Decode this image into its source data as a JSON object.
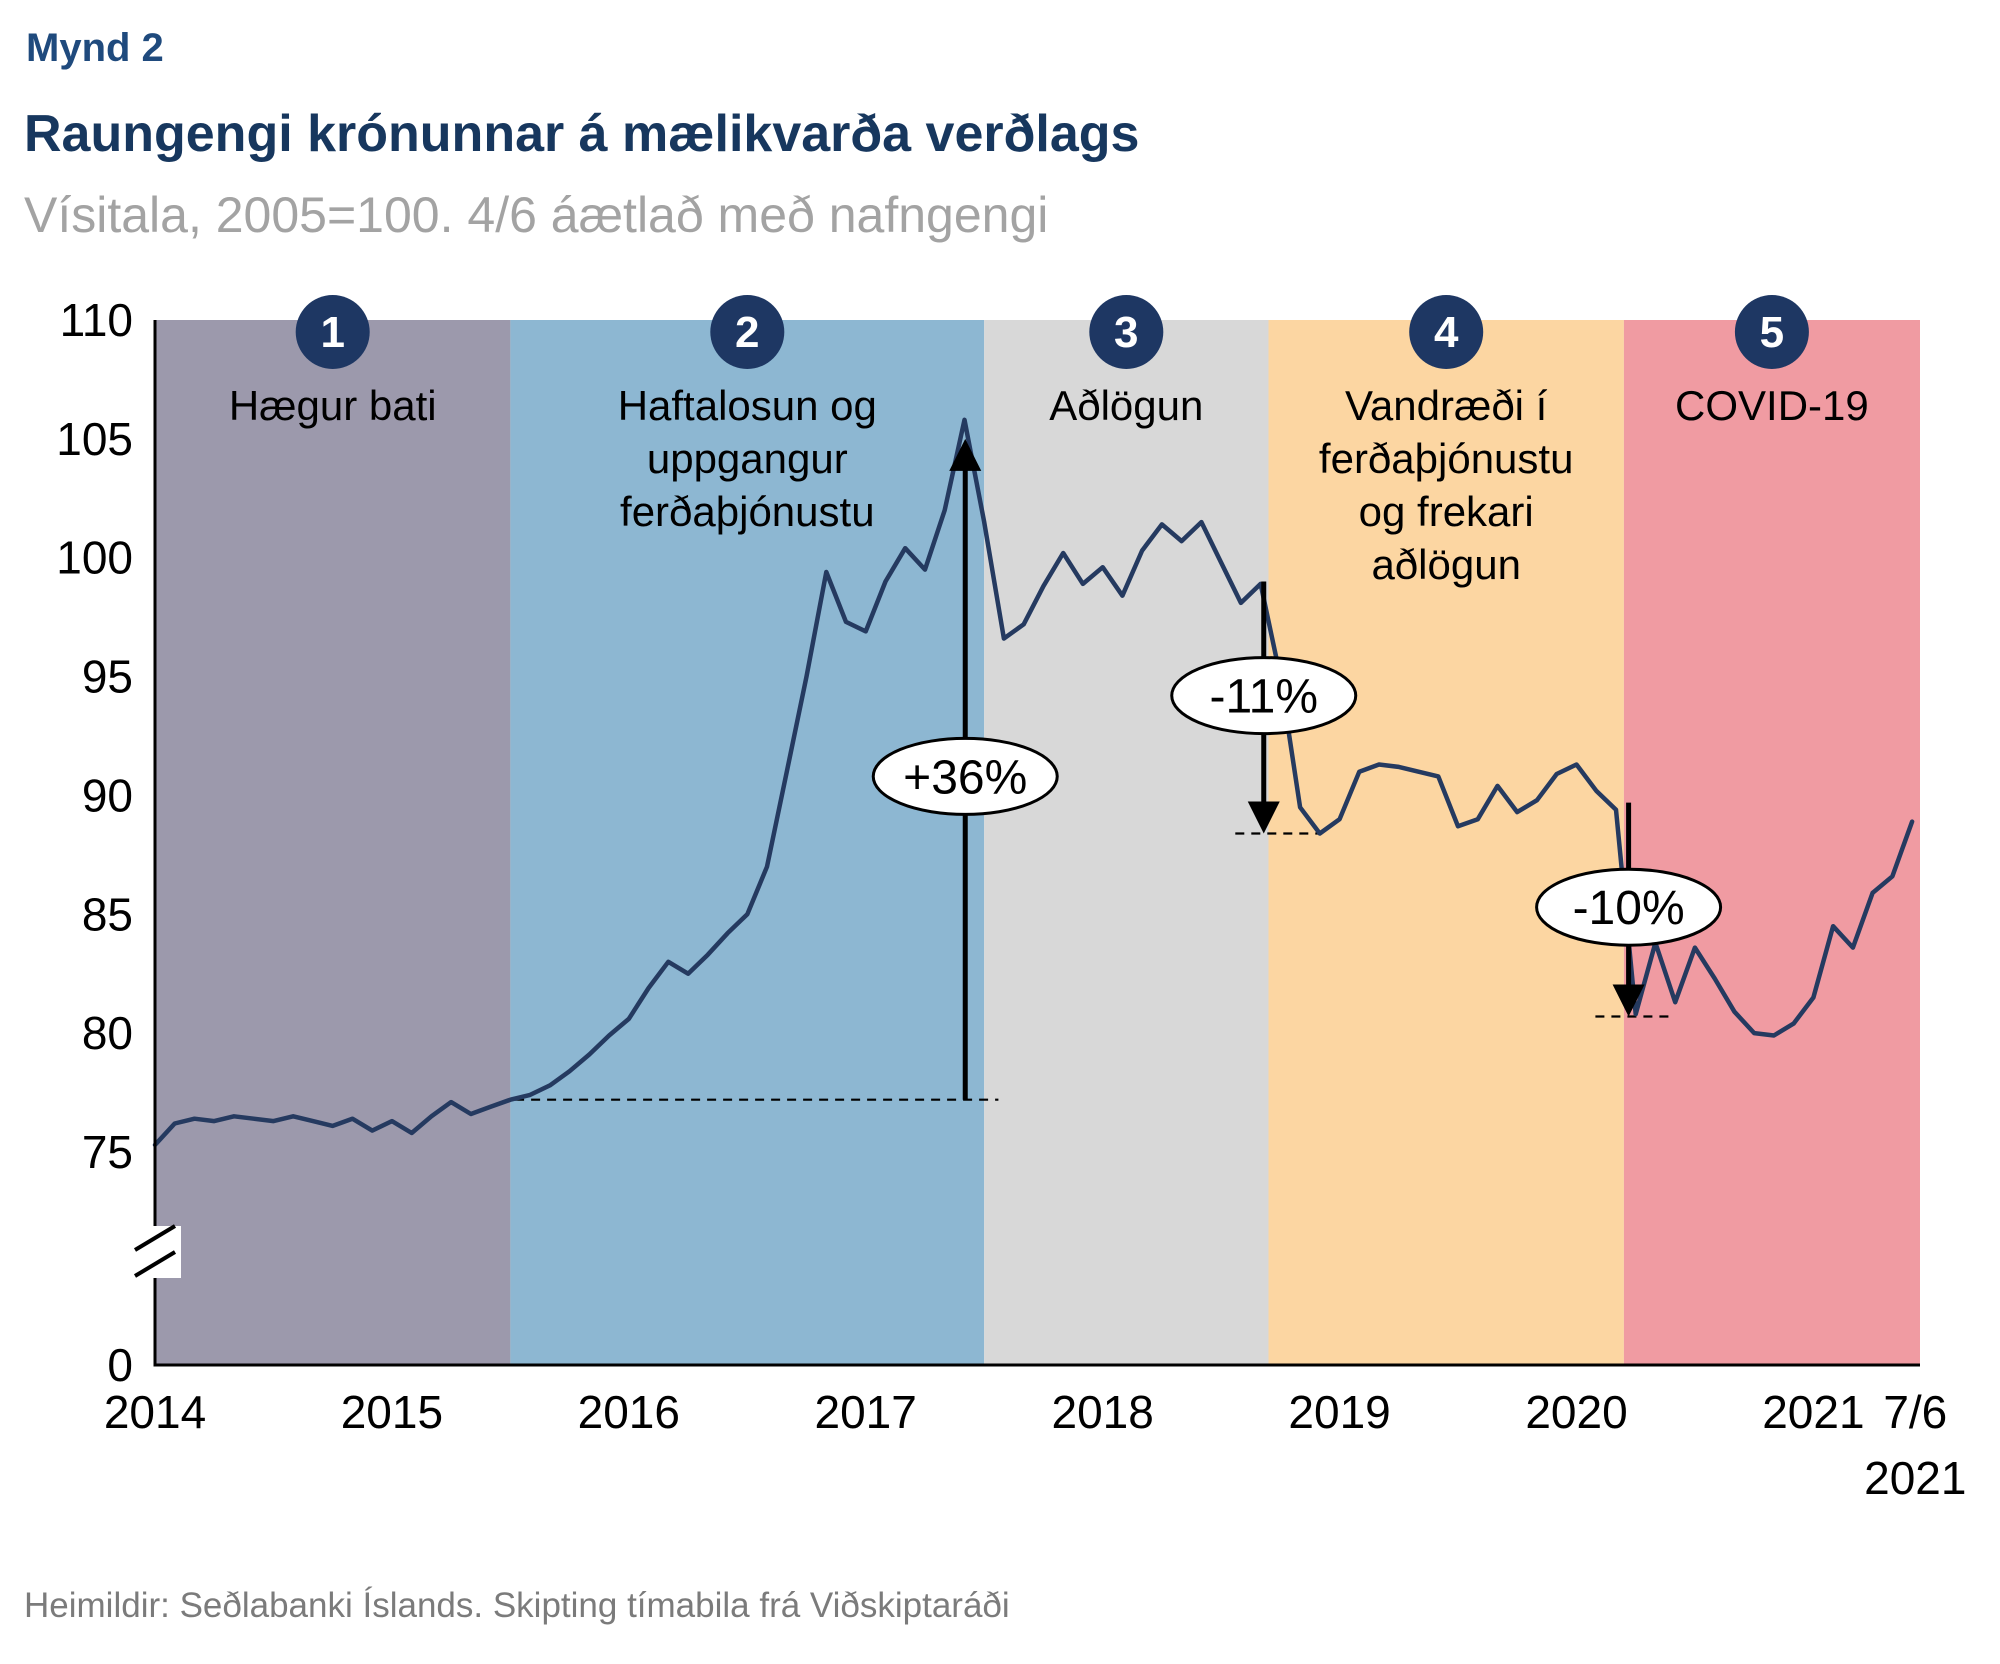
{
  "header": {
    "figure_label": "Mynd 2",
    "title": "Raungengi krónunnar á mælikvarða verðlags",
    "subtitle": "Vísitala, 2005=100. 4/6 áætlað með nafngengi"
  },
  "footer": {
    "source": "Heimildir: Seðlabanki Íslands. Skipting tímabila frá Viðskiptaráði"
  },
  "colors": {
    "title_navy": "#17375e",
    "figure_label_navy": "#1f4a7d",
    "subtitle_gray": "#a3a3a3",
    "source_gray": "#7b7b7b",
    "line_navy": "#253a60",
    "badge_navy": "#1e3763"
  },
  "chart_data": {
    "type": "line",
    "title": "Raungengi krónunnar á mælikvarða verðlags",
    "subtitle": "Vísitala, 2005=100. 4/6 áætlað með nafngengi",
    "legend_position": "none",
    "grid": false,
    "x_axis": {
      "start": 2014.0,
      "end": 2021.45,
      "ticks": [
        {
          "label": "2014",
          "pos": 2014
        },
        {
          "label": "2015",
          "pos": 2015
        },
        {
          "label": "2016",
          "pos": 2016
        },
        {
          "label": "2017",
          "pos": 2017
        },
        {
          "label": "2018",
          "pos": 2018
        },
        {
          "label": "2019",
          "pos": 2019
        },
        {
          "label": "2020",
          "pos": 2020
        },
        {
          "label": "2021",
          "pos": 2021
        },
        {
          "label": "7/6",
          "second_line": "2021",
          "pos": 2021.43
        }
      ]
    },
    "y_axis": {
      "max": 110,
      "min_working": 75,
      "ticks": [
        110,
        105,
        100,
        95,
        90,
        85,
        80,
        75
      ],
      "zero_label": "0",
      "axis_break": true
    },
    "series": [
      {
        "name": "Raungengi krónunnar (vísitala, 2005=100)",
        "color": "#253a60",
        "start_year": 2014,
        "interval": "monthly",
        "values": [
          75.3,
          76.2,
          76.4,
          76.3,
          76.5,
          76.4,
          76.3,
          76.5,
          76.3,
          76.1,
          76.4,
          75.9,
          76.3,
          75.8,
          76.5,
          77.1,
          76.6,
          76.9,
          77.2,
          77.4,
          77.8,
          78.4,
          79.1,
          79.9,
          80.6,
          81.9,
          83.0,
          82.5,
          83.3,
          84.2,
          85.0,
          87.0,
          91.0,
          95.0,
          99.4,
          97.3,
          96.9,
          99.0,
          100.4,
          99.5,
          102.0,
          105.8,
          101.5,
          96.6,
          97.2,
          98.8,
          100.2,
          98.9,
          99.6,
          98.4,
          100.3,
          101.4,
          100.7,
          101.5,
          99.8,
          98.1,
          98.9,
          95.0,
          89.5,
          88.4,
          89.0,
          91.0,
          91.3,
          91.2,
          91.0,
          90.8,
          88.7,
          89.0,
          90.4,
          89.3,
          89.8,
          90.9,
          91.3,
          90.2,
          89.4,
          80.8,
          83.8,
          81.3,
          83.6,
          82.3,
          80.9,
          80.0,
          79.9,
          80.4,
          81.5,
          84.5,
          83.6,
          85.9,
          86.6,
          88.9
        ]
      }
    ],
    "periods": [
      {
        "number": "1",
        "label_lines": [
          "Hægur bati"
        ],
        "start": 2014.0,
        "end": 2015.5,
        "color": "#9c99ac"
      },
      {
        "number": "2",
        "label_lines": [
          "Haftalosun og",
          "uppgangur",
          "ferðaþjónustu"
        ],
        "start": 2015.5,
        "end": 2017.5,
        "color": "#8db7d2"
      },
      {
        "number": "3",
        "label_lines": [
          "Aðlögun"
        ],
        "start": 2017.5,
        "end": 2018.7,
        "color": "#d8d8d8"
      },
      {
        "number": "4",
        "label_lines": [
          "Vandræði í",
          "ferðaþjónustu",
          "og frekari",
          "aðlögun"
        ],
        "start": 2018.7,
        "end": 2020.2,
        "color": "#fcd6a2"
      },
      {
        "number": "5",
        "label_lines": [
          "COVID-19"
        ],
        "start": 2020.2,
        "end": 2021.45,
        "color": "#f09ba2"
      }
    ],
    "annotations": [
      {
        "label": "+36%",
        "x": 2017.42,
        "from": 77.2,
        "to": 105.0,
        "direction": "up",
        "ellipse_at": 90.8,
        "dash_from_x": 2015.52,
        "dash_to_x": 2017.56,
        "dash_at": 77.2
      },
      {
        "label": "-11%",
        "x": 2018.68,
        "from": 99.0,
        "to": 88.4,
        "direction": "down",
        "ellipse_at": 94.2,
        "dash_from_x": 2018.56,
        "dash_to_x": 2018.92,
        "dash_at": 88.4
      },
      {
        "label": "-10%",
        "x": 2020.22,
        "from": 89.7,
        "to": 80.7,
        "direction": "down",
        "ellipse_at": 85.3,
        "dash_from_x": 2020.08,
        "dash_to_x": 2020.4,
        "dash_at": 80.7
      }
    ],
    "badge_color": "#1e3763"
  }
}
